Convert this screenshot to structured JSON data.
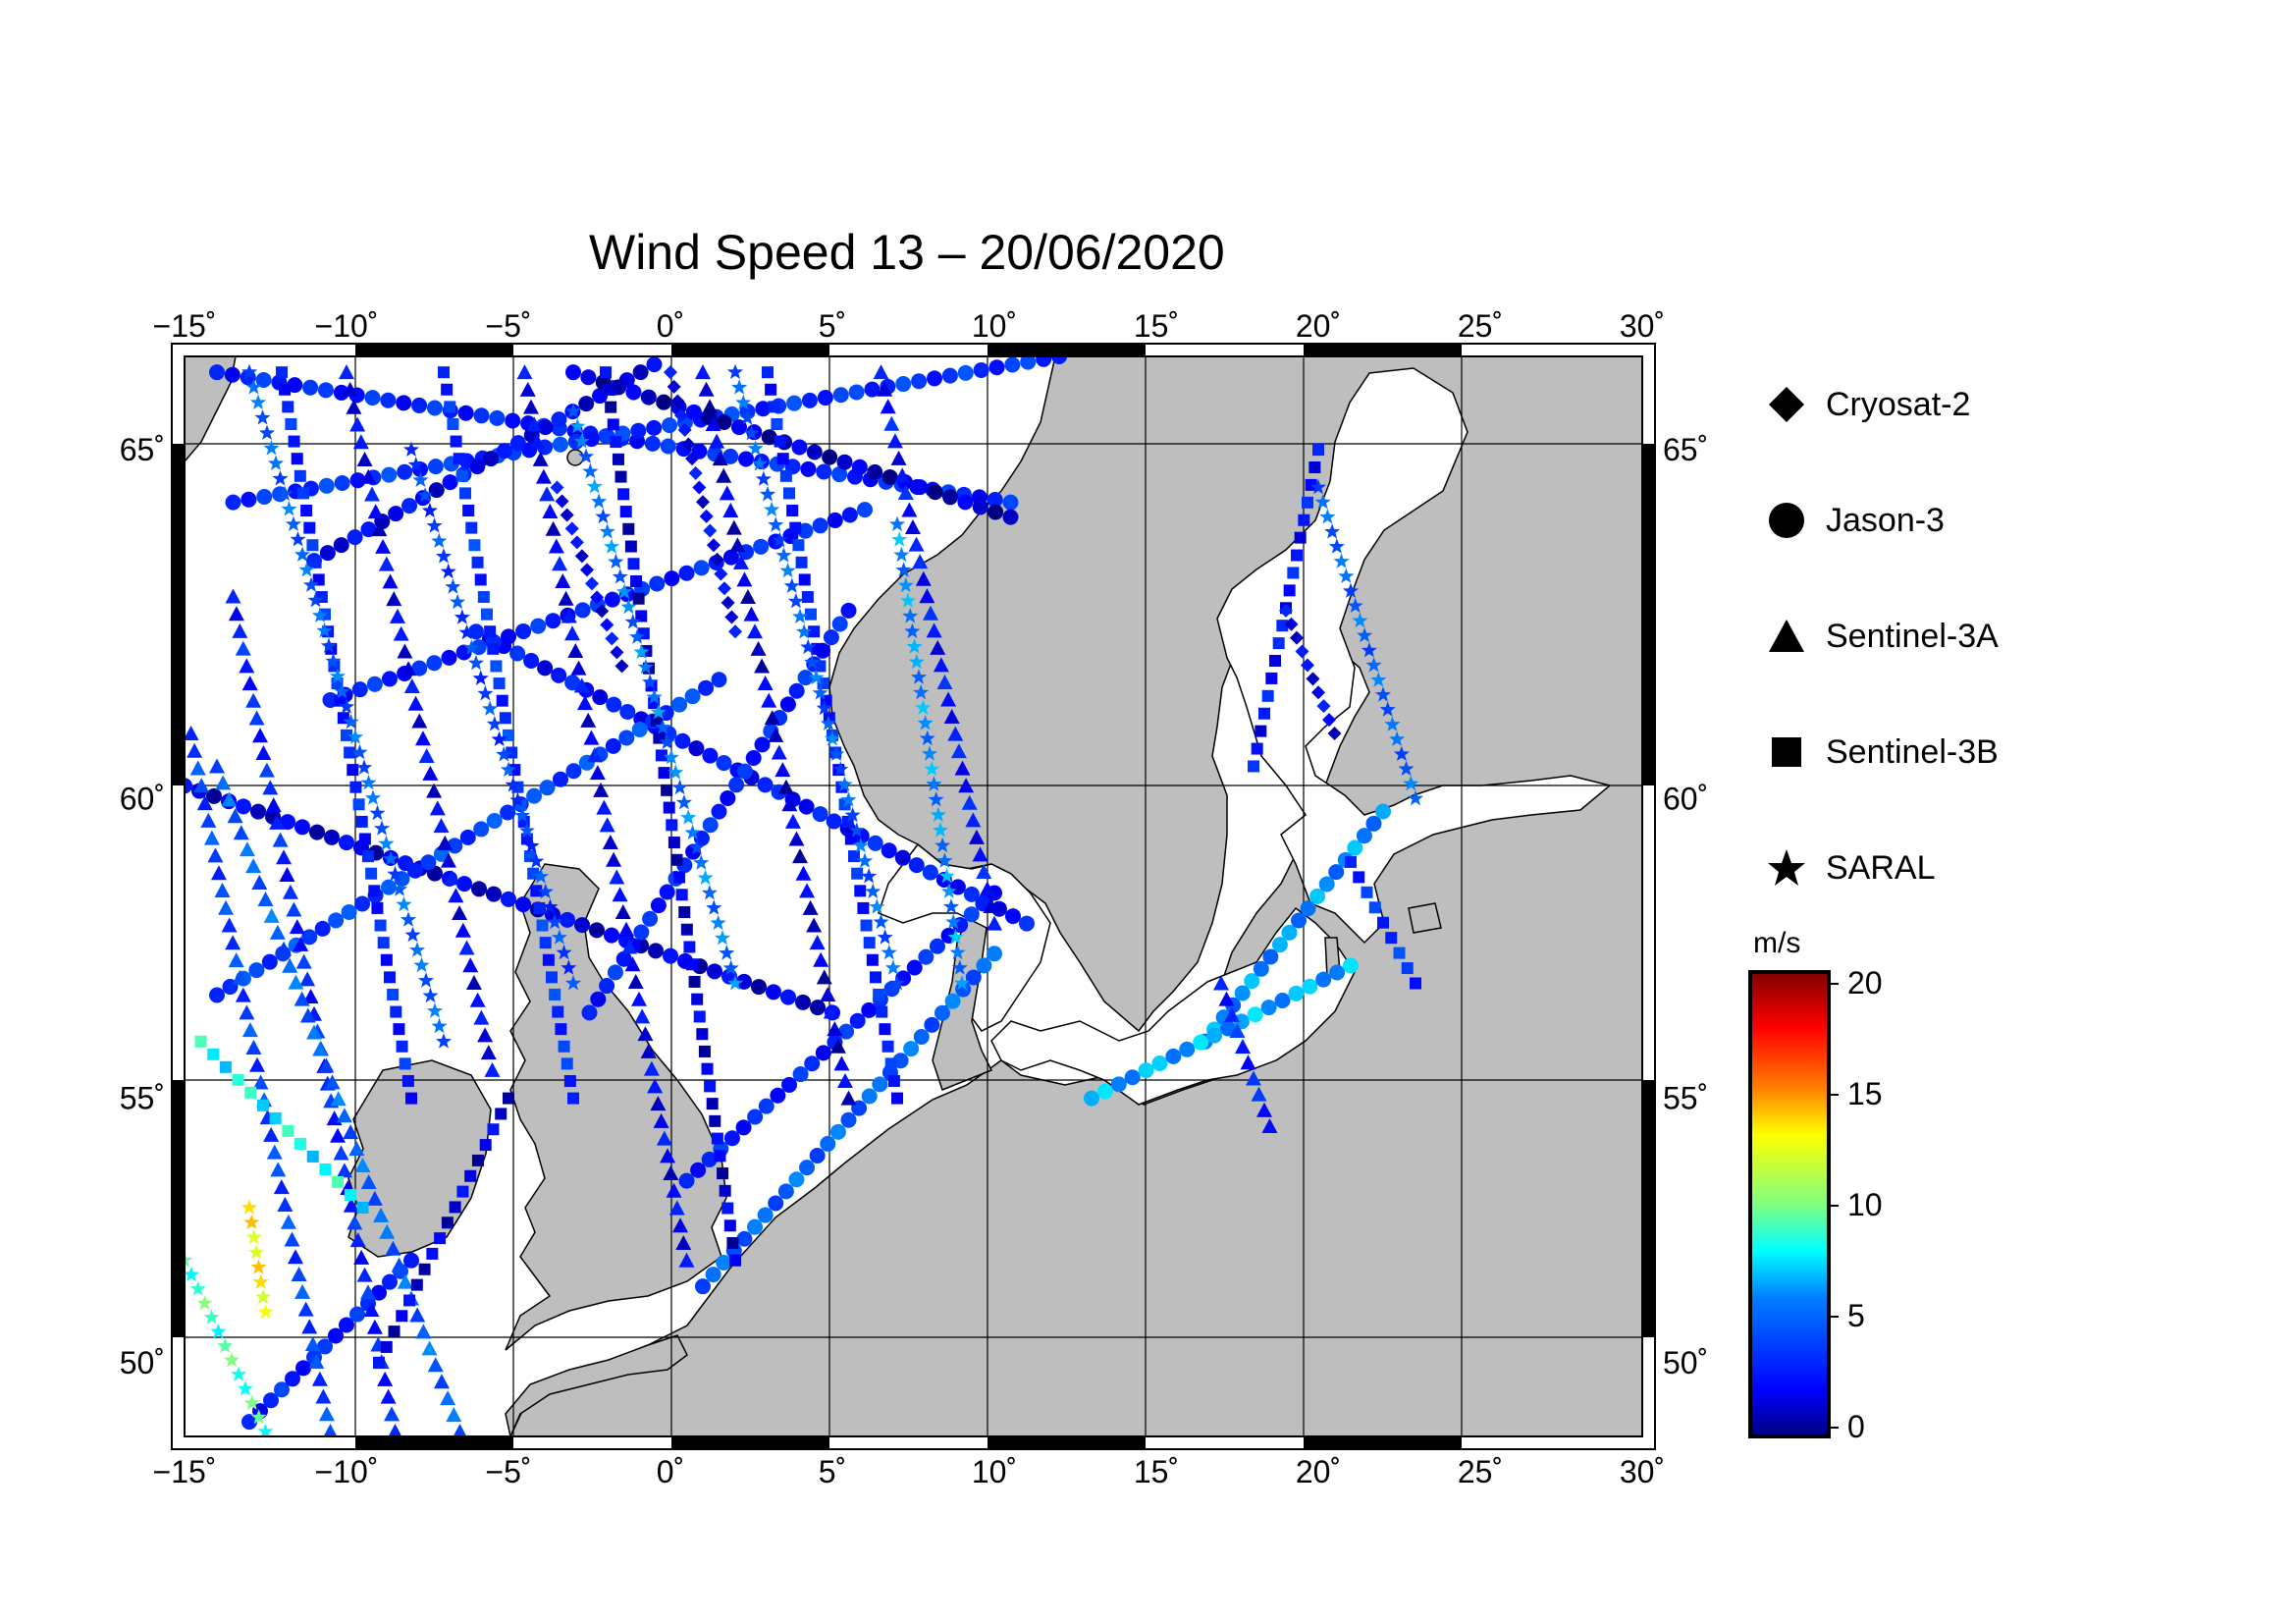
{
  "title": "Wind Speed 13 – 20/06/2020",
  "axes": {
    "lon_labels": [
      "−15˚",
      "−10˚",
      "−5˚",
      "0˚",
      "5˚",
      "10˚",
      "15˚",
      "20˚",
      "25˚",
      "30˚"
    ],
    "lat_labels": [
      "65˚",
      "60˚",
      "55˚",
      "50˚"
    ],
    "lon_range": [
      -15,
      30
    ],
    "lat_range": [
      48.5,
      66.2
    ]
  },
  "legend": [
    {
      "label": "Cryosat-2",
      "icon": "diamond-icon"
    },
    {
      "label": "Jason-3",
      "icon": "circle-icon"
    },
    {
      "label": "Sentinel-3A",
      "icon": "triangle-icon"
    },
    {
      "label": "Sentinel-3B",
      "icon": "square-icon"
    },
    {
      "label": "SARAL",
      "icon": "star-icon"
    }
  ],
  "colorbar": {
    "unit": "m/s",
    "ticks": [
      "20",
      "15",
      "10",
      "5",
      "0"
    ],
    "range": [
      0,
      20
    ],
    "colors": [
      "#000080",
      "#0000ff",
      "#0080ff",
      "#00ffff",
      "#80ff80",
      "#ffff00",
      "#ff8000",
      "#ff0000",
      "#800000"
    ]
  },
  "colors": {
    "land": "#bebebe",
    "sea": "#ffffff",
    "frame": "#000000"
  },
  "chart_data": {
    "type": "scatter",
    "title": "Wind Speed 13 – 20/06/2020",
    "xlabel": "",
    "ylabel": "",
    "xlim": [
      -15,
      30
    ],
    "ylim": [
      48.5,
      66.2
    ],
    "color_unit": "m/s",
    "series": [
      {
        "name": "Jason-3",
        "tracks": [
          {
            "start": [
              -14,
              66
            ],
            "end": [
              10.5,
              64.3
            ],
            "speed": 3
          },
          {
            "start": [
              -13.5,
              64.3
            ],
            "end": [
              12,
              66.2
            ],
            "speed": 3.5
          },
          {
            "start": [
              -15,
              60.2
            ],
            "end": [
              5,
              56.5
            ],
            "speed": 1.5
          },
          {
            "start": [
              -11,
              63.5
            ],
            "end": [
              -0.5,
              66.1
            ],
            "speed": 2
          },
          {
            "start": [
              -3,
              66
            ],
            "end": [
              10.5,
              64.1
            ],
            "speed": 1
          },
          {
            "start": [
              -6,
              62.5
            ],
            "end": [
              11,
              58
            ],
            "speed": 2.5
          },
          {
            "start": [
              -10.5,
              61.5
            ],
            "end": [
              6,
              64.2
            ],
            "speed": 3
          },
          {
            "start": [
              -2.5,
              56.5
            ],
            "end": [
              5.5,
              62.8
            ],
            "speed": 3
          },
          {
            "start": [
              -14,
              56.8
            ],
            "end": [
              1.5,
              61.8
            ],
            "speed": 4
          },
          {
            "start": [
              0.5,
              53.5
            ],
            "end": [
              10,
              58.5
            ],
            "speed": 3
          },
          {
            "start": [
              1,
              51.5
            ],
            "end": [
              10,
              57.5
            ],
            "speed": 5
          },
          {
            "start": [
              16.5,
              56
            ],
            "end": [
              22,
              59.8
            ],
            "speed": 6
          },
          {
            "start": [
              13,
              55
            ],
            "end": [
              21,
              57.3
            ],
            "speed": 6.5
          },
          {
            "start": [
              -13,
              48.8
            ],
            "end": [
              -8,
              52
            ],
            "speed": 3
          }
        ]
      },
      {
        "name": "Sentinel-3A",
        "tracks": [
          {
            "start": [
              -14.8,
              61
            ],
            "end": [
              -10.5,
              48.6
            ],
            "speed": 4
          },
          {
            "start": [
              -13.5,
              63
            ],
            "end": [
              -8.5,
              48.6
            ],
            "speed": 3
          },
          {
            "start": [
              -10,
              66
            ],
            "end": [
              -5.5,
              55.5
            ],
            "speed": 2
          },
          {
            "start": [
              -4.5,
              66
            ],
            "end": [
              0.5,
              52
            ],
            "speed": 2
          },
          {
            "start": [
              1,
              66
            ],
            "end": [
              5.5,
              55
            ],
            "speed": 1.5
          },
          {
            "start": [
              6.5,
              66
            ],
            "end": [
              10,
              58
            ],
            "speed": 2.5
          },
          {
            "start": [
              -14,
              60.5
            ],
            "end": [
              -6.5,
              48.6
            ],
            "speed": 5
          },
          {
            "start": [
              17,
              57
            ],
            "end": [
              18.5,
              54.5
            ],
            "speed": 3
          }
        ]
      },
      {
        "name": "Sentinel-3B",
        "tracks": [
          {
            "start": [
              -12,
              66
            ],
            "end": [
              -8,
              55
            ],
            "speed": 3
          },
          {
            "start": [
              -7,
              66
            ],
            "end": [
              -3,
              55
            ],
            "speed": 3.5
          },
          {
            "start": [
              -2,
              66
            ],
            "end": [
              2,
              52
            ],
            "speed": 1.5
          },
          {
            "start": [
              3,
              66
            ],
            "end": [
              7,
              55
            ],
            "speed": 3
          },
          {
            "start": [
              -14.5,
              56
            ],
            "end": [
              -9.5,
              53
            ],
            "speed": 8
          },
          {
            "start": [
              -9,
              50
            ],
            "end": [
              -5,
              55
            ],
            "speed": 1.5
          },
          {
            "start": [
              20,
              65
            ],
            "end": [
              18,
              60.5
            ],
            "speed": 2.5
          },
          {
            "start": [
              21,
              59
            ],
            "end": [
              23,
              57
            ],
            "speed": 3.5
          }
        ]
      },
      {
        "name": "SARAL",
        "tracks": [
          {
            "start": [
              -15,
              52
            ],
            "end": [
              -12.5,
              48.6
            ],
            "speed": 9
          },
          {
            "start": [
              -13,
              66
            ],
            "end": [
              -7,
              56
            ],
            "speed": 5
          },
          {
            "start": [
              -8,
              65
            ],
            "end": [
              -3,
              57
            ],
            "speed": 4
          },
          {
            "start": [
              -3,
              65.5
            ],
            "end": [
              2,
              57
            ],
            "speed": 5.5
          },
          {
            "start": [
              2,
              66
            ],
            "end": [
              7,
              57
            ],
            "speed": 5
          },
          {
            "start": [
              7,
              64
            ],
            "end": [
              9,
              57
            ],
            "speed": 6
          },
          {
            "start": [
              -13,
              53
            ],
            "end": [
              -12.5,
              51
            ],
            "speed": 13
          },
          {
            "start": [
              20,
              64.5
            ],
            "end": [
              23,
              60
            ],
            "speed": 5
          }
        ]
      },
      {
        "name": "Cryosat-2",
        "tracks": [
          {
            "start": [
              0,
              66
            ],
            "end": [
              2,
              62.5
            ],
            "speed": 2
          },
          {
            "start": [
              -3.5,
              64.5
            ],
            "end": [
              -1.5,
              62
            ],
            "speed": 2
          },
          {
            "start": [
              19,
              62.8
            ],
            "end": [
              20.5,
              61
            ],
            "speed": 2
          }
        ]
      }
    ]
  }
}
